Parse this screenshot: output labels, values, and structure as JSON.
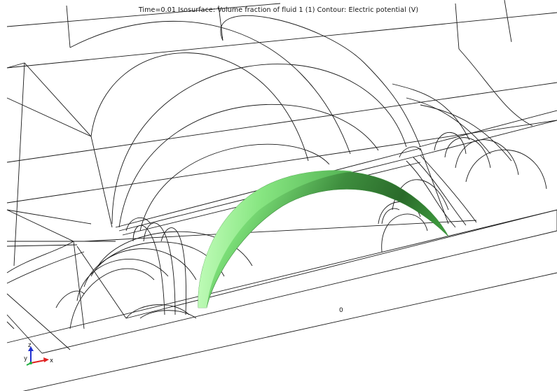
{
  "plot": {
    "title": "Time=0.01   Isosurface: Volume fraction of fluid 1 (1)  Contour: Electric potential (V)",
    "contour_label": "0"
  },
  "axes": {
    "z_label": "z",
    "y_label": "y",
    "x_label": "x",
    "x_color": "#e02020",
    "y_color": "#20b040",
    "z_color": "#2030d0"
  },
  "isosurface": {
    "light_color": "#8cf08c",
    "dark_color": "#2e7a2e"
  }
}
